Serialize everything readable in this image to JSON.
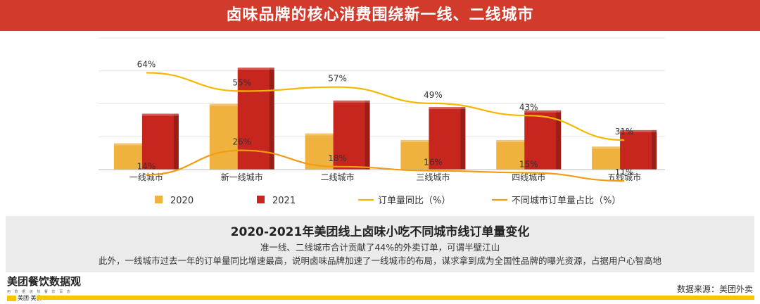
{
  "title": "卤味品牌的核心消费围绕新一线、二线城市",
  "chart_data": {
    "type": "bar",
    "categories": [
      "一线城市",
      "新一线城市",
      "二线城市",
      "三线城市",
      "四线城市",
      "五线城市"
    ],
    "series": [
      {
        "name": "2020",
        "kind": "bar",
        "color": "#f0b23e",
        "values": [
          8,
          20,
          11,
          9,
          9,
          7
        ]
      },
      {
        "name": "2021",
        "kind": "bar",
        "color": "#c6261e",
        "values": [
          17,
          31,
          21,
          19,
          18,
          12
        ]
      },
      {
        "name": "订单量同比（%）",
        "kind": "line",
        "color": "#f5b800",
        "values": [
          64,
          55,
          57,
          49,
          43,
          31
        ],
        "labels": [
          "64%",
          "55%",
          "57%",
          "49%",
          "43%",
          "31%"
        ]
      },
      {
        "name": "不同城市订单量占比（%）",
        "kind": "line",
        "color": "#f39c12",
        "values": [
          14,
          26,
          18,
          16,
          15,
          11
        ],
        "labels": [
          "14%",
          "26%",
          "18%",
          "16%",
          "15%",
          "11%"
        ]
      }
    ],
    "bar_ylim": [
      0,
      40
    ],
    "line_ylim": [
      0,
      70
    ],
    "legend_position": "bottom",
    "grid": true
  },
  "panel": {
    "title": "2020-2021年美团线上卤味小吃不同城市线订单量变化",
    "line1": "准一线、二线城市合计贡献了44%的外卖订单，可谓半壁江山",
    "line2": "此外，一线城市过去一年的订单量同比增速最高，说明卤味品牌加速了一线城市的布局，谋求拿到成为全国性品牌的曝光资源，占据用户心智高地"
  },
  "brand": {
    "name": "美团餐饮数据观",
    "tagline": "用 数 据 说 热 餐 饮 百 态",
    "logo_text": "美团·美食"
  },
  "source": "数据来源：美团外卖"
}
